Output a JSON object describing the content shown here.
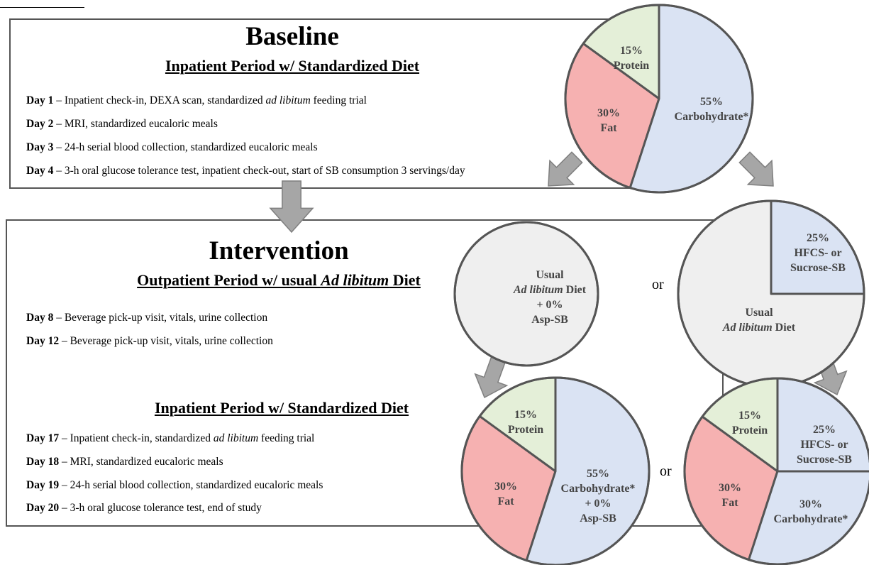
{
  "baseline": {
    "title": "Baseline",
    "subtitle": "Inpatient Period w/ Standardized Diet",
    "days": [
      {
        "day": "Day 1",
        "sep": " –  ",
        "pre": "Inpatient check-in, DEXA scan, standardized ",
        "em": "ad libitum",
        "post": " feeding trial"
      },
      {
        "day": "Day 2",
        "sep": " – ",
        "pre": "MRI, standardized eucaloric meals",
        "em": "",
        "post": ""
      },
      {
        "day": "Day 3",
        "sep": " – ",
        "pre": "24-h serial blood collection, standardized eucaloric meals",
        "em": "",
        "post": ""
      },
      {
        "day": "Day 4",
        "sep": " – ",
        "pre": "3-h oral glucose tolerance test, inpatient check-out, start of SB consumption 3 servings/day",
        "em": "",
        "post": ""
      }
    ]
  },
  "intervention": {
    "title": "Intervention",
    "outpatient_subtitle_pre": "Outpatient Period w/ usual ",
    "outpatient_subtitle_em": "Ad libitum",
    "outpatient_subtitle_post": " Diet",
    "outpatient_days": [
      {
        "day": "Day 8",
        "sep": " – ",
        "pre": "Beverage pick-up visit, vitals, urine collection",
        "em": "",
        "post": ""
      },
      {
        "day": "Day 12",
        "sep": " – ",
        "pre": "Beverage pick-up visit, vitals, urine collection",
        "em": "",
        "post": ""
      }
    ],
    "inpatient_subtitle": "Inpatient Period w/ Standardized Diet",
    "inpatient_days": [
      {
        "day": "Day 17",
        "sep": " – ",
        "pre": "Inpatient check-in, standardized ",
        "em": "ad libitum",
        "post": " feeding trial"
      },
      {
        "day": "Day 18",
        "sep": " – ",
        "pre": "MRI, standardized eucaloric meals",
        "em": "",
        "post": ""
      },
      {
        "day": "Day 19",
        "sep": " –  ",
        "pre": "24-h serial blood collection, standardized eucaloric meals",
        "em": "",
        "post": ""
      },
      {
        "day": "Day 20",
        "sep": " – ",
        "pre": "3-h oral glucose tolerance test, end of study",
        "em": "",
        "post": ""
      }
    ]
  },
  "or_word": "or",
  "colors": {
    "protein": "#e4efd8",
    "fat": "#f6b1b1",
    "carbohydrate": "#dae3f3",
    "sb": "#dae3f3",
    "usual": "#efefef",
    "outline": "#555555",
    "arrow": "#a6a6a6"
  },
  "pies": {
    "baseline": {
      "slices": [
        {
          "key": "protein",
          "percent": 15,
          "lines": [
            "15%",
            "Protein"
          ]
        },
        {
          "key": "fat",
          "percent": 30,
          "lines": [
            "30%",
            "Fat"
          ]
        },
        {
          "key": "carbohydrate",
          "percent": 55,
          "lines": [
            "55%",
            "Carbohydrate*"
          ]
        }
      ]
    },
    "usual_asp": {
      "slices": [
        {
          "key": "usual",
          "percent": 100,
          "lines": [
            "Usual",
            "Ad libitum Diet",
            "",
            "+ 0%",
            "Asp-SB"
          ]
        }
      ]
    },
    "usual_sb": {
      "slices": [
        {
          "key": "sb",
          "percent": 25,
          "lines": [
            "25%",
            "HFCS- or",
            "Sucrose-SB"
          ]
        },
        {
          "key": "usual",
          "percent": 75,
          "lines": [
            "Usual",
            "Ad libitum Diet"
          ]
        }
      ]
    },
    "final_asp": {
      "slices": [
        {
          "key": "protein",
          "percent": 15,
          "lines": [
            "15%",
            "Protein"
          ]
        },
        {
          "key": "fat",
          "percent": 30,
          "lines": [
            "30%",
            "Fat"
          ]
        },
        {
          "key": "carbohydrate",
          "percent": 55,
          "lines": [
            "55%",
            "Carbohydrate*",
            "",
            "+ 0%",
            "Asp-SB"
          ]
        }
      ]
    },
    "final_sb": {
      "slices": [
        {
          "key": "protein",
          "percent": 15,
          "lines": [
            "15%",
            "Protein"
          ]
        },
        {
          "key": "fat",
          "percent": 30,
          "lines": [
            "30%",
            "Fat"
          ]
        },
        {
          "key": "carbohydrate",
          "percent": 30,
          "lines": [
            "30%",
            "Carbohydrate*"
          ]
        },
        {
          "key": "sb",
          "percent": 25,
          "lines": [
            "25%",
            "HFCS- or",
            "Sucrose-SB"
          ]
        }
      ]
    }
  }
}
